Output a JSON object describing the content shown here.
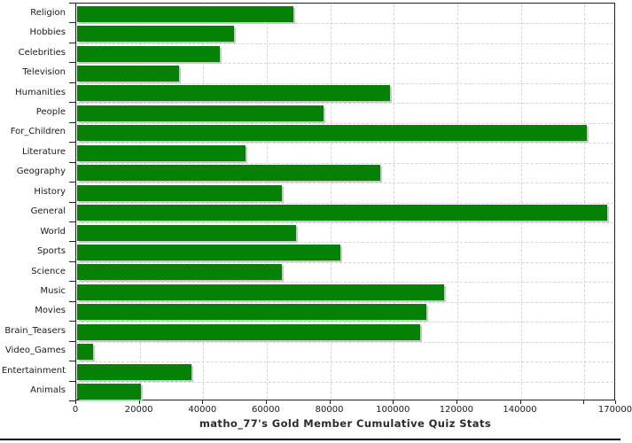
{
  "chart_data": {
    "type": "bar",
    "orientation": "horizontal",
    "title": "matho_77's Gold Member Cumulative Quiz Stats",
    "categories": [
      "Religion",
      "Hobbies",
      "Celebrities",
      "Television",
      "Humanities",
      "People",
      "For_Children",
      "Literature",
      "Geography",
      "History",
      "General",
      "World",
      "Sports",
      "Science",
      "Music",
      "Movies",
      "Brain_Teasers",
      "Video_Games",
      "Entertainment",
      "Animals"
    ],
    "values": [
      68000,
      49500,
      45000,
      32000,
      98500,
      77500,
      160500,
      53000,
      95500,
      64500,
      167000,
      69000,
      83000,
      64500,
      115500,
      110000,
      108000,
      5000,
      36000,
      20000
    ],
    "xlim": [
      0,
      170000
    ],
    "x_ticks_labeled": [
      0,
      20000,
      40000,
      60000,
      80000,
      100000,
      120000,
      140000
    ],
    "x_ticks_unlabeled": [
      160000
    ],
    "x_axis_end_tick": 170000,
    "x_axis_end_label": "170000",
    "grid": true,
    "legend": "none",
    "bar_color": "#058205",
    "bar_shadow_color": "#c9c9c9",
    "gridline_color": "#d4d4d4",
    "axis_color": "#222222",
    "label_color": "#1a1a1a"
  }
}
